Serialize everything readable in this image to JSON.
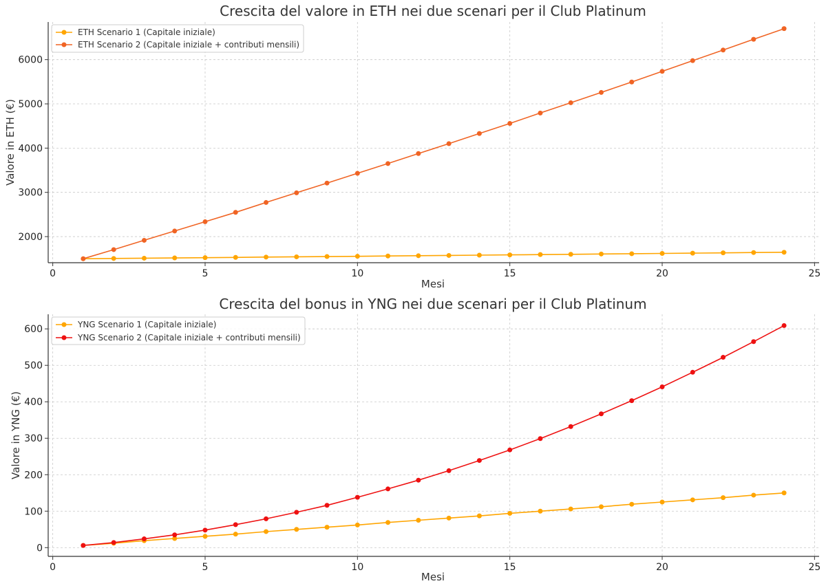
{
  "chart_data": [
    {
      "type": "line",
      "title": "Crescita del valore in ETH nei due scenari per il Club Platinum",
      "xlabel": "Mesi",
      "ylabel": "Valore in ETH (€)",
      "xlim": [
        -0.15,
        25.15
      ],
      "ylim": [
        1410,
        6850
      ],
      "xticks": [
        0,
        5,
        10,
        15,
        20,
        25
      ],
      "yticks": [
        2000,
        3000,
        4000,
        5000,
        6000
      ],
      "grid": true,
      "legend_position": "top-left",
      "x": [
        1,
        2,
        3,
        4,
        5,
        6,
        7,
        8,
        9,
        10,
        11,
        12,
        13,
        14,
        15,
        16,
        17,
        18,
        19,
        20,
        21,
        22,
        23,
        24
      ],
      "series": [
        {
          "name": "ETH Scenario 1 (Capitale iniziale)",
          "color": "#ffa500",
          "values": [
            1500,
            1506,
            1512,
            1518,
            1524,
            1530,
            1537,
            1543,
            1549,
            1555,
            1562,
            1568,
            1574,
            1581,
            1587,
            1594,
            1600,
            1607,
            1613,
            1620,
            1626,
            1633,
            1640,
            1646
          ]
        },
        {
          "name": "ETH Scenario 2 (Capitale iniziale + contributi mensili)",
          "color": "#f06424",
          "values": [
            1500,
            1706,
            1916,
            2126,
            2336,
            2548,
            2771,
            2990,
            3210,
            3430,
            3651,
            3878,
            4101,
            4330,
            4558,
            4793,
            5025,
            5258,
            5494,
            5735,
            5977,
            6217,
            6460,
            6700
          ]
        }
      ]
    },
    {
      "type": "line",
      "title": "Crescita del bonus in YNG nei due scenari per il Club Platinum",
      "xlabel": "Mesi",
      "ylabel": "Valore in YNG (€)",
      "xlim": [
        -0.15,
        25.15
      ],
      "ylim": [
        -24,
        640
      ],
      "xticks": [
        0,
        5,
        10,
        15,
        20,
        25
      ],
      "yticks": [
        0,
        100,
        200,
        300,
        400,
        500,
        600
      ],
      "grid": true,
      "legend_position": "top-left",
      "x": [
        1,
        2,
        3,
        4,
        5,
        6,
        7,
        8,
        9,
        10,
        11,
        12,
        13,
        14,
        15,
        16,
        17,
        18,
        19,
        20,
        21,
        22,
        23,
        24
      ],
      "series": [
        {
          "name": "YNG Scenario 1 (Capitale iniziale)",
          "color": "#ffa500",
          "values": [
            6,
            12,
            19,
            25,
            31,
            37,
            44,
            50,
            56,
            62,
            69,
            75,
            81,
            87,
            94,
            100,
            106,
            112,
            119,
            125,
            131,
            137,
            144,
            150
          ]
        },
        {
          "name": "YNG Scenario 2 (Capitale iniziale + contributi mensili)",
          "color": "#ee1111",
          "values": [
            6,
            14,
            24,
            35,
            48,
            63,
            79,
            97,
            116,
            138,
            161,
            185,
            211,
            239,
            268,
            299,
            332,
            367,
            403,
            441,
            481,
            522,
            565,
            609
          ]
        }
      ]
    }
  ]
}
